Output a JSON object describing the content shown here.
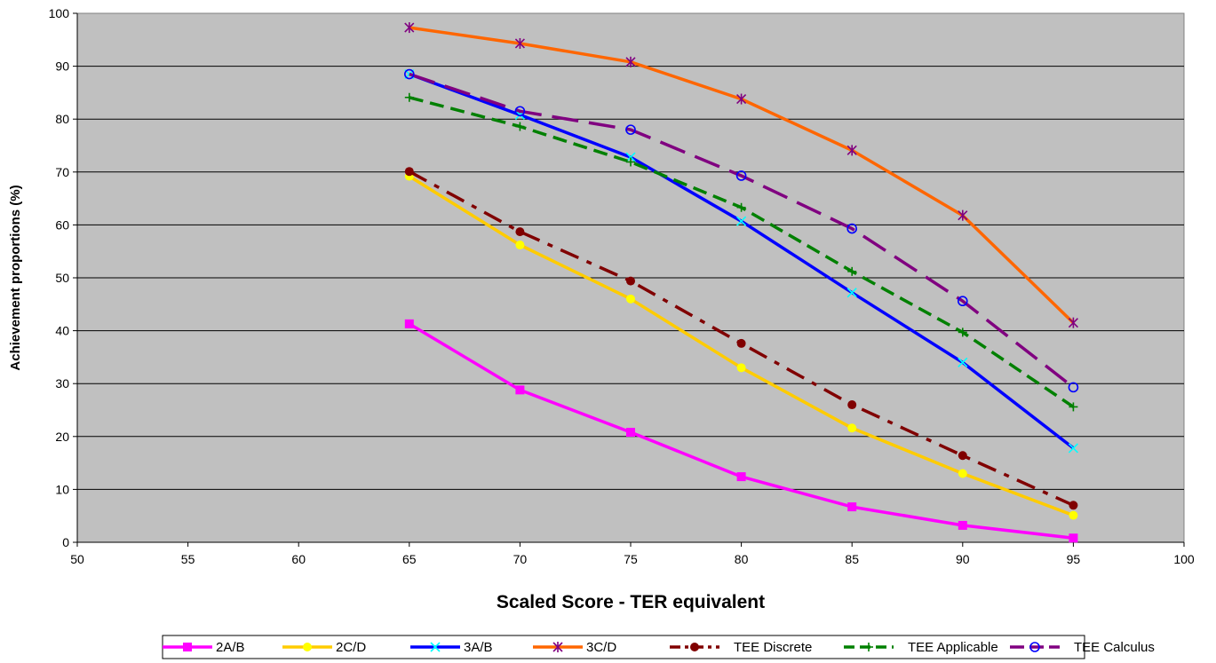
{
  "chart_data": {
    "type": "line",
    "xlabel": "Scaled Score - TER equivalent",
    "ylabel": "Achievement proportions (%)",
    "xlim": [
      50,
      100
    ],
    "ylim": [
      0,
      100
    ],
    "xticks": [
      50,
      55,
      60,
      65,
      70,
      75,
      80,
      85,
      90,
      95,
      100
    ],
    "yticks": [
      0,
      10,
      20,
      30,
      40,
      50,
      60,
      70,
      80,
      90,
      100
    ],
    "grid": "horizontal",
    "legend_position": "bottom",
    "plot_background": "#C0C0C0",
    "x": [
      65,
      70,
      75,
      80,
      85,
      90,
      95
    ],
    "series": [
      {
        "name": "2A/B",
        "values": [
          41.3,
          28.8,
          20.8,
          12.4,
          6.7,
          3.2,
          0.8
        ],
        "color": "#FF00FF",
        "dash": "solid",
        "marker": "square"
      },
      {
        "name": "2C/D",
        "values": [
          69.2,
          56.2,
          46.0,
          33.0,
          21.6,
          13.0,
          5.1
        ],
        "color": "#FFCC00",
        "dash": "solid",
        "marker": "circle"
      },
      {
        "name": "3A/B",
        "values": [
          88.5,
          80.8,
          72.8,
          60.7,
          47.2,
          34.0,
          17.8
        ],
        "color": "#0000FF",
        "dash": "solid",
        "marker": "x"
      },
      {
        "name": "3C/D",
        "values": [
          97.3,
          94.3,
          90.8,
          83.8,
          74.1,
          61.8,
          41.5
        ],
        "color": "#FF6600",
        "dash": "solid",
        "marker": "star"
      },
      {
        "name": "TEE Discrete",
        "values": [
          70.1,
          58.7,
          49.4,
          37.6,
          26.0,
          16.4,
          7.0
        ],
        "color": "#800000",
        "dash": "dashdot",
        "marker": "filled-circle"
      },
      {
        "name": "TEE Applicable",
        "values": [
          84.1,
          78.6,
          71.9,
          63.3,
          51.2,
          39.7,
          25.6
        ],
        "color": "#008000",
        "dash": "dash",
        "marker": "plus"
      },
      {
        "name": "TEE Calculus",
        "values": [
          88.5,
          81.5,
          78.0,
          69.3,
          59.3,
          45.6,
          29.3
        ],
        "color": "#800080",
        "dash": "longdash",
        "marker": "open-circle"
      }
    ]
  }
}
